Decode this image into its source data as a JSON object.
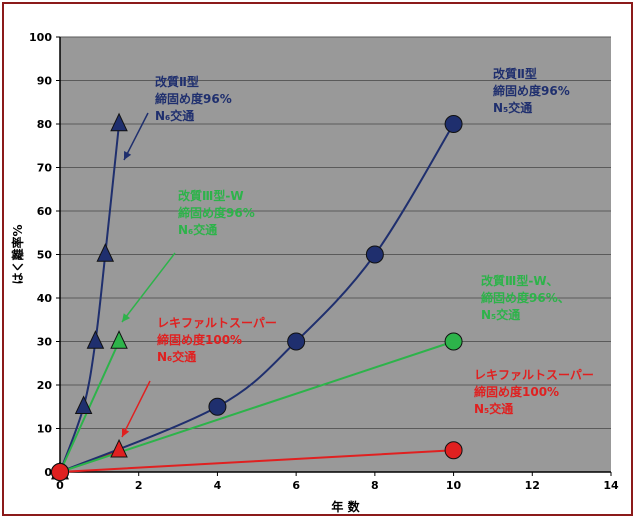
{
  "chart_data": {
    "type": "line",
    "xlabel": "年 数",
    "ylabel": "はく離率%",
    "xlim": [
      0,
      14
    ],
    "ylim": [
      0,
      100
    ],
    "xticks": [
      0,
      2,
      4,
      6,
      8,
      10,
      12,
      14
    ],
    "yticks": [
      0,
      10,
      20,
      30,
      40,
      50,
      60,
      70,
      80,
      90,
      100
    ],
    "grid": true,
    "background": "#999999",
    "series": [
      {
        "color": "#1f2f6e",
        "marker": "triangle",
        "x": [
          0,
          0.6,
          0.9,
          1.15,
          1.5
        ],
        "y": [
          0,
          15,
          30,
          50,
          80
        ]
      },
      {
        "color": "#2db34a",
        "marker": "triangle",
        "x": [
          0,
          1.5
        ],
        "y": [
          0,
          30
        ]
      },
      {
        "color": "#e02020",
        "marker": "triangle",
        "x": [
          0,
          1.5
        ],
        "y": [
          0,
          5
        ]
      },
      {
        "color": "#1f2f6e",
        "marker": "circle",
        "x": [
          0,
          4,
          6,
          8,
          10
        ],
        "y": [
          0,
          15,
          30,
          50,
          80
        ]
      },
      {
        "color": "#2db34a",
        "marker": "circle",
        "x": [
          0,
          10
        ],
        "y": [
          0,
          30
        ]
      },
      {
        "color": "#e02020",
        "marker": "circle",
        "x": [
          0,
          10
        ],
        "y": [
          0,
          5
        ]
      }
    ],
    "annotations": [
      {
        "lines": [
          "改質Ⅱ型",
          "締固め度96%",
          "N₆交通"
        ],
        "color": "#1f2f6e"
      },
      {
        "lines": [
          "改質Ⅲ型-W",
          "締固め度96%",
          "N₆交通"
        ],
        "color": "#2db34a"
      },
      {
        "lines": [
          "レキファルトスーパー",
          "締固め度100%",
          "N₆交通"
        ],
        "color": "#e02020"
      },
      {
        "lines": [
          "改質Ⅱ型",
          "締固め度96%",
          "N₅交通"
        ],
        "color": "#1f2f6e"
      },
      {
        "lines": [
          "改質Ⅲ型-W、",
          "締固め度96%、",
          "N₅交通"
        ],
        "color": "#2db34a"
      },
      {
        "lines": [
          "レキファルトスーパー",
          "締固め度100%",
          "N₅交通"
        ],
        "color": "#e02020"
      }
    ]
  }
}
